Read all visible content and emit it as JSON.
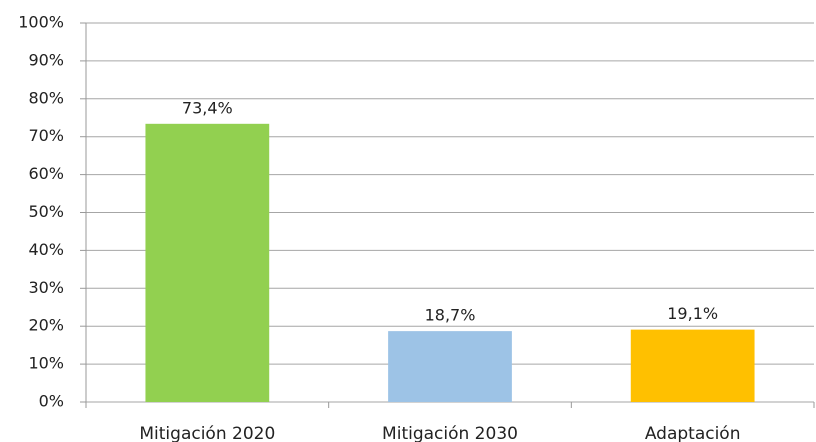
{
  "chart_data": {
    "type": "bar",
    "categories": [
      "Mitigación 2020",
      "Mitigación 2030",
      "Adaptación"
    ],
    "values": [
      73.4,
      18.7,
      19.1
    ],
    "value_labels": [
      "73,4%",
      "18,7%",
      "19,1%"
    ],
    "colors": [
      "#92d050",
      "#9dc3e6",
      "#ffc000"
    ],
    "ylim": [
      0,
      100
    ],
    "yticks": [
      {
        "value": 0,
        "label": "0%"
      },
      {
        "value": 10,
        "label": "10%"
      },
      {
        "value": 20,
        "label": "20%"
      },
      {
        "value": 30,
        "label": "30%"
      },
      {
        "value": 40,
        "label": "40%"
      },
      {
        "value": 50,
        "label": "50%"
      },
      {
        "value": 60,
        "label": "60%"
      },
      {
        "value": 70,
        "label": "70%"
      },
      {
        "value": 80,
        "label": "80%"
      },
      {
        "value": 90,
        "label": "90%"
      },
      {
        "value": 100,
        "label": "100%"
      }
    ],
    "grid": true
  }
}
